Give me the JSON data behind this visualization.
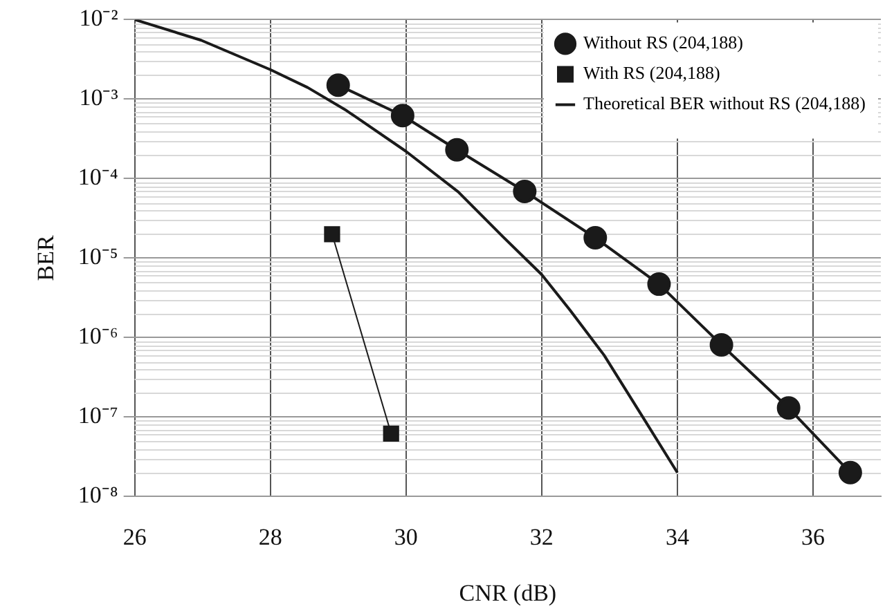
{
  "chart_data": {
    "type": "line",
    "xlabel": "CNR (dB)",
    "ylabel": "BER",
    "xlim": [
      26,
      37
    ],
    "xticks": [
      26,
      28,
      30,
      32,
      34,
      36
    ],
    "ylim": [
      1e-08,
      0.01
    ],
    "yticks": [
      {
        "value": 1e-08,
        "label": "10⁻⁸"
      },
      {
        "value": 1e-07,
        "label": "10⁻⁷"
      },
      {
        "value": 1e-06,
        "label": "10⁻⁶"
      },
      {
        "value": 1e-05,
        "label": "10⁻⁵"
      },
      {
        "value": 0.0001,
        "label": "10⁻⁴"
      },
      {
        "value": 0.001,
        "label": "10⁻³"
      },
      {
        "value": 0.01,
        "label": "10⁻²"
      }
    ],
    "log": "y",
    "grid": true,
    "legend": "top right",
    "series": [
      {
        "name": "Without RS (204,188)",
        "color": "#1a1a1a",
        "marker": "circle",
        "x": [
          29.0,
          29.95,
          30.75,
          31.75,
          32.79,
          33.73,
          34.65,
          35.64,
          36.55
        ],
        "values": [
          0.0015,
          0.00062,
          0.00023,
          6.9e-05,
          1.8e-05,
          4.7e-06,
          8.1e-07,
          1.3e-07,
          2e-08
        ]
      },
      {
        "name": "With RS (204,188)",
        "color": "#1a1a1a",
        "marker": "square",
        "x": [
          28.91,
          29.78
        ],
        "values": [
          2e-05,
          6.2e-08
        ]
      },
      {
        "name": "Theoretical BER without RS (204,188)",
        "color": "#1a1a1a",
        "marker": "none",
        "x": [
          26,
          26.98,
          28,
          28.55,
          29.12,
          30,
          30.77,
          31.43,
          32,
          32.42,
          32.92,
          33.49,
          34
        ],
        "values": [
          0.01,
          0.0055,
          0.00235,
          0.0014,
          0.00072,
          0.00022,
          6.8e-05,
          1.85e-05,
          6.2e-06,
          2.2e-06,
          6e-07,
          1e-07,
          2e-08
        ]
      }
    ]
  }
}
